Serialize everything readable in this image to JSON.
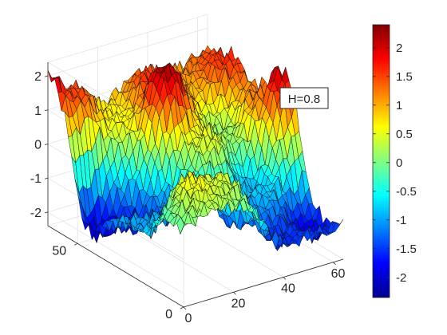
{
  "chart_data": {
    "type": "surface",
    "annotation": "H=0.8",
    "x_axis": {
      "range": [
        0,
        64
      ],
      "ticks": [
        0,
        20,
        40,
        60
      ],
      "labels": [
        "0",
        "20",
        "40",
        "60"
      ]
    },
    "y_axis": {
      "range": [
        0,
        64
      ],
      "ticks": [
        0,
        50
      ],
      "labels": [
        "0",
        "50"
      ]
    },
    "z_axis": {
      "range": [
        -2.4,
        2.4
      ],
      "ticks": [
        -2,
        -1,
        0,
        1,
        2
      ],
      "labels": [
        "-2",
        "-1",
        "0",
        "1",
        "2"
      ]
    },
    "colorbar": {
      "range": [
        -2.35,
        2.4
      ],
      "ticks": [
        -2,
        -1.5,
        -1,
        -0.5,
        0,
        0.5,
        1,
        1.5,
        2
      ],
      "labels": [
        "-2",
        "-1.5",
        "-1",
        "-0.5",
        "0",
        "0.5",
        "1",
        "1.5",
        "2"
      ],
      "colormap": "jet"
    },
    "grid": true,
    "grid_resolution": 41,
    "surface_anchors": [
      {
        "x": 0,
        "y": 64,
        "z": 2.0
      },
      {
        "x": 8,
        "y": 60,
        "z": 1.5
      },
      {
        "x": 5,
        "y": 45,
        "z": -2.0
      },
      {
        "x": 12,
        "y": 38,
        "z": -1.7
      },
      {
        "x": 20,
        "y": 30,
        "z": -1.3
      },
      {
        "x": 14,
        "y": 12,
        "z": 0.6
      },
      {
        "x": 25,
        "y": 12,
        "z": 0.4
      },
      {
        "x": 36,
        "y": 18,
        "z": -1.4
      },
      {
        "x": 32,
        "y": 46,
        "z": 2.2
      },
      {
        "x": 34,
        "y": 54,
        "z": 1.6
      },
      {
        "x": 38,
        "y": 33,
        "z": 0.5
      },
      {
        "x": 48,
        "y": 25,
        "z": -0.9
      },
      {
        "x": 50,
        "y": 40,
        "z": 0.1
      },
      {
        "x": 60,
        "y": 35,
        "z": 1.2
      },
      {
        "x": 64,
        "y": 30,
        "z": 2.1
      },
      {
        "x": 58,
        "y": 10,
        "z": -1.8
      },
      {
        "x": 62,
        "y": 52,
        "z": 1.6
      },
      {
        "x": 22,
        "y": 56,
        "z": 0.6
      },
      {
        "x": 44,
        "y": 6,
        "z": -1.6
      },
      {
        "x": 4,
        "y": 24,
        "z": -1.0
      }
    ]
  }
}
